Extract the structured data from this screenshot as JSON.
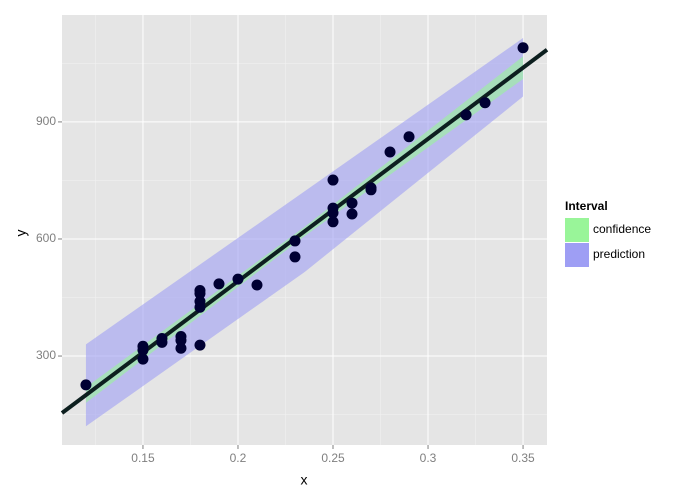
{
  "chart_data": {
    "type": "scatter",
    "xlabel": "x",
    "ylabel": "y",
    "xlim": [
      0.1074,
      0.3626
    ],
    "ylim": [
      72,
      1174
    ],
    "xticks": [
      0.15,
      0.2,
      0.25,
      0.3,
      0.35
    ],
    "yticks": [
      300,
      600,
      900
    ],
    "grid": true,
    "legend_title": "Interval",
    "legend": "right",
    "points": {
      "color": "#000033",
      "x": [
        0.12,
        0.15,
        0.15,
        0.15,
        0.16,
        0.16,
        0.17,
        0.17,
        0.17,
        0.18,
        0.18,
        0.18,
        0.18,
        0.18,
        0.19,
        0.2,
        0.21,
        0.23,
        0.23,
        0.25,
        0.25,
        0.25,
        0.25,
        0.26,
        0.26,
        0.27,
        0.27,
        0.28,
        0.29,
        0.32,
        0.33,
        0.35
      ],
      "y": [
        226,
        325,
        315,
        292,
        345,
        335,
        350,
        340,
        320,
        468,
        460,
        440,
        425,
        328,
        485,
        497,
        482,
        595,
        554,
        751,
        679,
        667,
        644,
        692,
        664,
        726,
        731,
        823,
        862,
        918,
        949,
        1090
      ]
    },
    "fit": {
      "color": "#0d1f1f",
      "x": [
        0.1074,
        0.3626
      ],
      "y": [
        154,
        1085
      ]
    },
    "band_x": [
      0.12,
      0.235,
      0.35
    ],
    "series": [
      {
        "name": "confidence",
        "color": "#99f599",
        "lower": [
          180,
          607,
          1010
        ],
        "upper": [
          220,
          631,
          1068
        ]
      },
      {
        "name": "prediction",
        "color": "#9e9ef4",
        "lower": [
          120,
          515,
          965
        ],
        "upper": [
          330,
          722,
          1115
        ]
      }
    ]
  }
}
